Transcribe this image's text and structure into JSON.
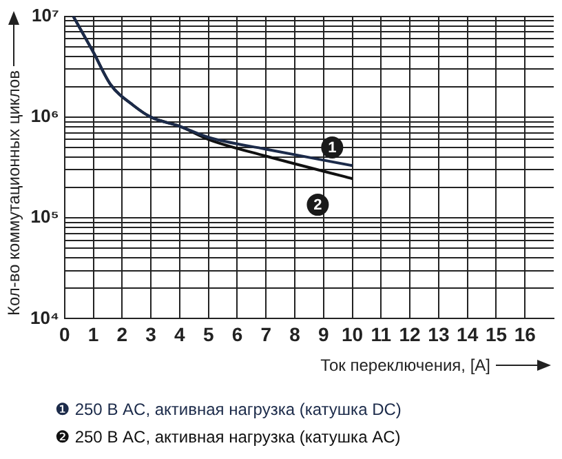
{
  "chart_data": {
    "type": "line",
    "xlabel": "Ток переключения, [A]",
    "ylabel": "Кол-во коммутационных циклов",
    "x": [
      0.3,
      1,
      1.6,
      2.4,
      3,
      4,
      5,
      7,
      10
    ],
    "series": [
      {
        "name": "❶ 250 В AC, активная нагрузка (катушка DC)",
        "color": "#1c2b4a",
        "values": [
          10000000,
          4400000,
          2100000,
          1300000,
          1000000,
          810000,
          630000,
          480000,
          330000
        ]
      },
      {
        "name": "❷ 250 В AC, активная нагрузка (катушка AC)",
        "color": "#111111",
        "values": [
          10000000,
          4400000,
          2100000,
          1300000,
          1000000,
          810000,
          600000,
          410000,
          245000
        ]
      }
    ],
    "annotations": [
      {
        "text": "1",
        "x": 9.3,
        "y": 500000
      },
      {
        "text": "2",
        "x": 8.8,
        "y": 135000
      }
    ],
    "xlim": [
      0,
      17
    ],
    "xticks": [
      0,
      1,
      2,
      3,
      4,
      5,
      6,
      7,
      8,
      9,
      10,
      11,
      12,
      13,
      14,
      15,
      16
    ],
    "ylim": [
      10000,
      10000000
    ],
    "yticks": [
      {
        "value": 10000,
        "label": "10⁴"
      },
      {
        "value": 100000,
        "label": "10⁵"
      },
      {
        "value": 1000000,
        "label": "10⁶"
      },
      {
        "value": 10000000,
        "label": "10⁷"
      }
    ],
    "log": "y",
    "grid": true,
    "legend": "bottom",
    "marker": "none",
    "line_style": "solid"
  }
}
